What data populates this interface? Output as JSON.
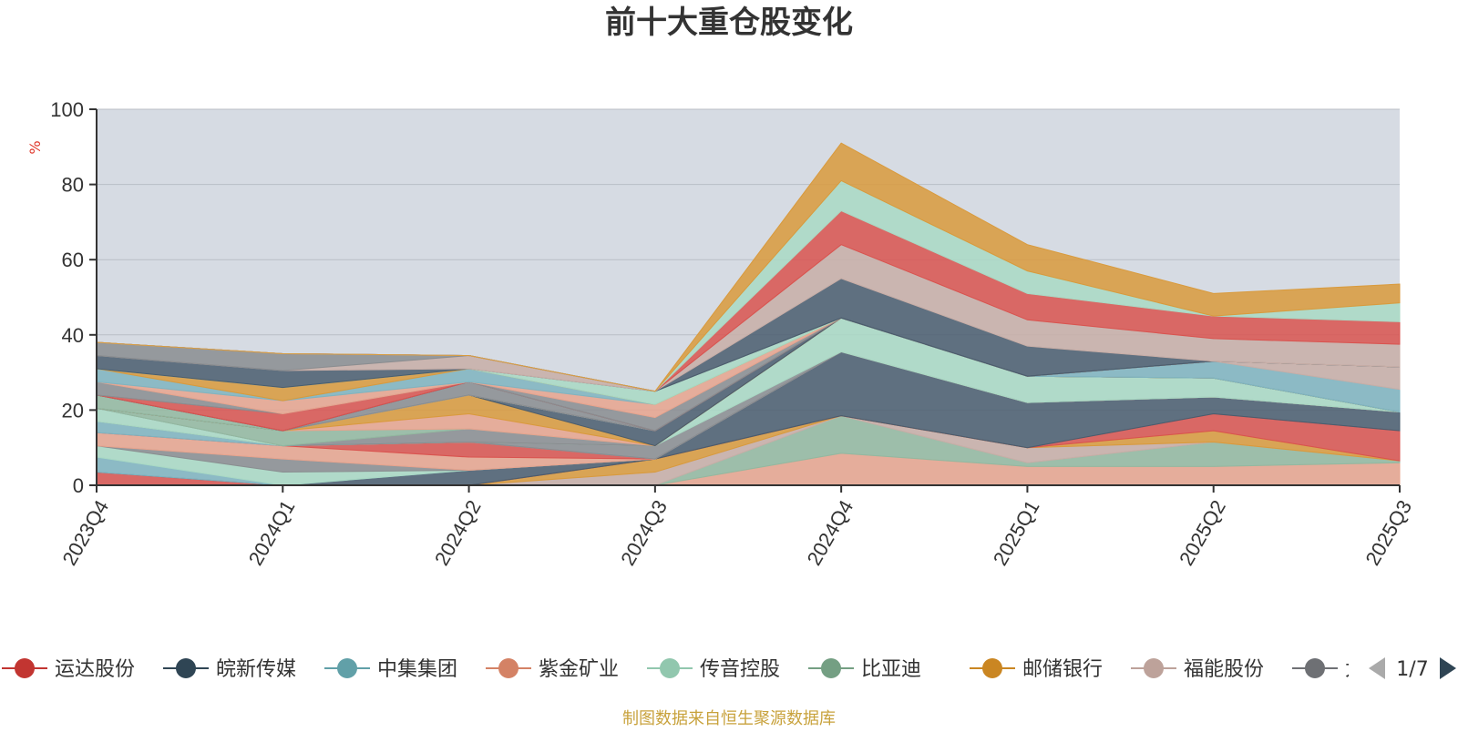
{
  "chart_data": {
    "type": "area",
    "stacked": true,
    "title": "前十大重仓股变化",
    "ylabel": "%",
    "ylim": [
      0,
      100
    ],
    "yticks": [
      0,
      20,
      40,
      60,
      80,
      100
    ],
    "categories": [
      "2023Q4",
      "2024Q1",
      "2024Q2",
      "2024Q3",
      "2024Q4",
      "2025Q1",
      "2025Q2",
      "2025Q3"
    ],
    "series": [
      {
        "name": "紫金矿业",
        "color": "#e8a48e",
        "values": [
          0,
          0,
          0,
          0,
          8.5,
          5,
          5,
          6
        ]
      },
      {
        "name": "比亚迪",
        "color": "#93b8a0",
        "values": [
          0,
          0,
          0,
          0,
          10,
          1,
          6.5,
          0.5
        ]
      },
      {
        "name": "福能股份",
        "color": "#c8aea7",
        "values": [
          0,
          0,
          0,
          3.5,
          0,
          4,
          0,
          0
        ]
      },
      {
        "name": "邮储银行",
        "color": "#d99a3c",
        "values": [
          0,
          0,
          0,
          3.5,
          0,
          0,
          3,
          0
        ]
      },
      {
        "name": "运达股份",
        "color": "#d9534f",
        "values": [
          3.5,
          0,
          0,
          0,
          0,
          0,
          4.5,
          8
        ]
      },
      {
        "name": "皖新传媒",
        "color": "#4a5d6e",
        "values": [
          0,
          0,
          4,
          0,
          17,
          12,
          4.5,
          5
        ]
      },
      {
        "name": "中集集团",
        "color": "#7fb4c0",
        "values": [
          4,
          0,
          0,
          0,
          0,
          0,
          0,
          0
        ]
      },
      {
        "name": "传音控股",
        "color": "#a9d9c4",
        "values": [
          3,
          3.5,
          0,
          0,
          0,
          0,
          0,
          0
        ]
      },
      {
        "name": "太阳能",
        "color": "#8a8d90",
        "values": [
          0,
          3.5,
          0,
          0,
          0,
          0,
          0,
          0
        ]
      },
      {
        "name": "紫金矿业",
        "color": "#e8a48e",
        "values": [
          3.5,
          3.5,
          3.5,
          0,
          0,
          0,
          0,
          0
        ]
      },
      {
        "name": "运达股份",
        "color": "#d9534f",
        "values": [
          0,
          0,
          4,
          0,
          0,
          0,
          0,
          0
        ]
      },
      {
        "name": "中集集团",
        "color": "#7fb4c0",
        "values": [
          3,
          0,
          0,
          0,
          0,
          0,
          0,
          0
        ]
      },
      {
        "name": "太阳能",
        "color": "#8a8d90",
        "values": [
          0,
          0,
          0,
          3.5,
          0,
          0,
          0,
          0
        ]
      },
      {
        "name": "传音控股",
        "color": "#a9d9c4",
        "values": [
          3.5,
          0,
          0,
          0,
          9,
          7,
          5,
          0
        ]
      },
      {
        "name": "太阳能",
        "color": "#8a8d90",
        "values": [
          0,
          0,
          3.5,
          0,
          0,
          0,
          0,
          0
        ]
      },
      {
        "name": "比亚迪",
        "color": "#93b8a0",
        "values": [
          0,
          4,
          0,
          0,
          0,
          0,
          0,
          0
        ]
      },
      {
        "name": "紫金矿业",
        "color": "#e8a48e",
        "values": [
          0,
          0,
          4,
          0,
          0,
          0,
          0,
          0
        ]
      },
      {
        "name": "邮储银行",
        "color": "#d99a3c",
        "values": [
          0,
          0,
          5,
          0,
          0,
          0,
          0,
          0
        ]
      },
      {
        "name": "皖新传媒",
        "color": "#4a5d6e",
        "values": [
          0,
          0,
          0,
          4,
          0,
          0,
          0,
          0
        ]
      },
      {
        "name": "比亚迪",
        "color": "#93b8a0",
        "values": [
          3.5,
          0,
          0,
          0,
          0,
          0,
          0,
          0
        ]
      },
      {
        "name": "中集集团",
        "color": "#7fb4c0",
        "values": [
          0,
          0,
          0,
          0,
          0,
          0,
          4.5,
          6
        ]
      },
      {
        "name": "福能股份",
        "color": "#c8aea7",
        "values": [
          0,
          0,
          0,
          0,
          0,
          0,
          0,
          6
        ]
      },
      {
        "name": "太阳能",
        "color": "#8a8d90",
        "values": [
          0,
          0,
          3.5,
          0,
          0,
          0,
          0,
          0
        ]
      },
      {
        "name": "皖新传媒",
        "color": "#4a5d6e",
        "values": [
          0,
          0,
          0,
          0,
          0,
          0,
          0,
          0
        ]
      },
      {
        "name": "运达股份",
        "color": "#d9534f",
        "values": [
          0,
          4.5,
          0,
          0,
          0,
          0,
          0,
          0
        ]
      },
      {
        "name": "太阳能",
        "color": "#8a8d90",
        "values": [
          3.5,
          0,
          0,
          3.5,
          0,
          0,
          0,
          0
        ]
      },
      {
        "name": "紫金矿业",
        "color": "#e8a48e",
        "values": [
          0,
          3.5,
          0,
          3.5,
          0,
          0,
          0,
          0
        ]
      },
      {
        "name": "中集集团",
        "color": "#7fb4c0",
        "values": [
          3.5,
          0,
          3.5,
          0,
          0,
          0,
          0,
          0
        ]
      },
      {
        "name": "邮储银行",
        "color": "#d99a3c",
        "values": [
          0,
          3.5,
          0,
          0,
          0,
          0,
          0,
          0
        ]
      },
      {
        "name": "传音控股",
        "color": "#a9d9c4",
        "values": [
          0,
          0,
          0,
          3.5,
          0,
          0,
          0,
          0
        ]
      },
      {
        "name": "皖新传媒",
        "color": "#4a5d6e",
        "values": [
          3.5,
          4.5,
          0,
          0,
          0,
          0,
          0,
          0
        ]
      },
      {
        "name": "福能股份",
        "color": "#c8aea7",
        "values": [
          0,
          0,
          3.5,
          0,
          0,
          0,
          0,
          0
        ]
      },
      {
        "name": "太阳能",
        "color": "#8a8d90",
        "values": [
          3.5,
          4.5,
          0,
          0,
          0,
          0,
          0,
          0
        ]
      },
      {
        "name": "皖新传媒 ",
        "color": "#4a5d6e",
        "values": [
          0,
          0,
          0,
          0,
          10.5,
          8,
          0,
          0
        ]
      },
      {
        "name": "福能股份 ",
        "color": "#c8aea7",
        "values": [
          0,
          0,
          0,
          0,
          9,
          7,
          6,
          6
        ]
      },
      {
        "name": "运达股份 ",
        "color": "#d9534f",
        "values": [
          0,
          0,
          0,
          0,
          9,
          7,
          6,
          6
        ]
      },
      {
        "name": "传音控股 ",
        "color": "#a9d9c4",
        "values": [
          0,
          0,
          0,
          0,
          8,
          6,
          0,
          5
        ]
      },
      {
        "name": "邮储银行 ",
        "color": "#d99a3c",
        "values": [
          0,
          0,
          0,
          0,
          10,
          7,
          6,
          5
        ]
      }
    ],
    "legend": {
      "position": "bottom",
      "items": [
        {
          "name": "运达股份",
          "color": "#c23531"
        },
        {
          "name": "皖新传媒",
          "color": "#2f4554"
        },
        {
          "name": "中集集团",
          "color": "#61a0a8"
        },
        {
          "name": "紫金矿业",
          "color": "#d48265"
        },
        {
          "name": "传音控股",
          "color": "#91c7ae"
        },
        {
          "name": "比亚迪",
          "color": "#749f83"
        },
        {
          "name": "邮储银行",
          "color": "#ca8622"
        },
        {
          "name": "福能股份",
          "color": "#bda29a"
        },
        {
          "name": "太阳能",
          "color": "#6e7074"
        }
      ],
      "page": "1/7"
    },
    "source_note": "制图数据来自恒生聚源数据库"
  },
  "colors": {
    "plot_bg": "#d6dbe3",
    "axis": "#333333",
    "ylabel": "#e0382c",
    "footer": "#c8a23c",
    "title": "#333333"
  }
}
